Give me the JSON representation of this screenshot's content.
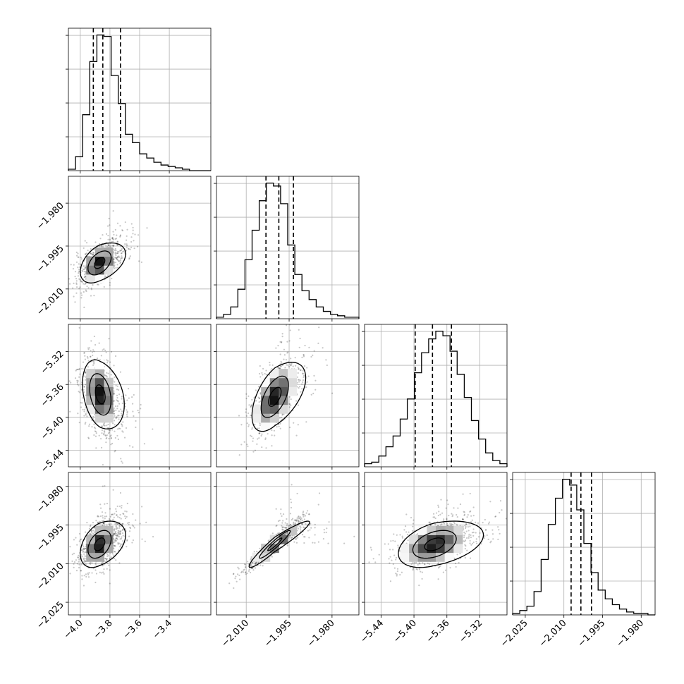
{
  "chart_data": {
    "type": "corner",
    "title": "",
    "grid": true,
    "parameters": [
      {
        "ticks": [
          -4.0,
          -3.8,
          -3.6,
          -3.4
        ],
        "tick_labels": [
          "−4.0",
          "−3.8",
          "−3.6",
          "−3.4"
        ],
        "range": [
          -4.08,
          -3.12
        ]
      },
      {
        "ticks": [
          -2.01,
          -1.995,
          -1.98
        ],
        "tick_labels": [
          "−2.010",
          "−1.995",
          "−1.980"
        ],
        "range": [
          -2.0204,
          -1.9706
        ]
      },
      {
        "ticks": [
          -5.44,
          -5.4,
          -5.36,
          -5.32
        ],
        "tick_labels": [
          "−5.44",
          "−5.40",
          "−5.36",
          "−5.32"
        ],
        "range": [
          -5.46,
          -5.287
        ]
      },
      {
        "ticks": [
          -2.025,
          -2.01,
          -1.995,
          -1.98
        ],
        "tick_labels": [
          "−2.025",
          "−2.010",
          "−1.995",
          "−1.980"
        ],
        "range": [
          -2.0299,
          -1.9746
        ]
      }
    ],
    "diagonal": [
      {
        "quantiles": [
          -3.912,
          -3.848,
          -3.729
        ],
        "counts": [
          1,
          10,
          40,
          78,
          97,
          96,
          68,
          48,
          26,
          20,
          12,
          9,
          6,
          4,
          3,
          2,
          1,
          0,
          0,
          0
        ]
      },
      {
        "quantiles": [
          -2.0031,
          -1.9986,
          -1.9935
        ],
        "counts": [
          1,
          3,
          8,
          20,
          40,
          60,
          80,
          92,
          90,
          78,
          50,
          30,
          19,
          13,
          8,
          5,
          3,
          2,
          1,
          1
        ]
      },
      {
        "quantiles": [
          -5.3985,
          -5.3775,
          -5.3545
        ],
        "counts": [
          2,
          3,
          7,
          13,
          20,
          31,
          44,
          61,
          74,
          83,
          88,
          85,
          75,
          60,
          45,
          30,
          18,
          9,
          4,
          2
        ]
      },
      {
        "quantiles": [
          -2.0072,
          -2.0034,
          -1.9993
        ],
        "counts": [
          1,
          3,
          6,
          16,
          38,
          62,
          80,
          93,
          89,
          72,
          49,
          29,
          17,
          11,
          7,
          4,
          2,
          1,
          1,
          0
        ]
      }
    ],
    "pairs": [
      {
        "row": 1,
        "col": 0,
        "mean": [
          -3.87,
          -2.0009
        ],
        "sd": [
          0.065,
          0.0035
        ],
        "corr": 0.45
      },
      {
        "row": 2,
        "col": 0,
        "mean": [
          -3.865,
          -5.372
        ],
        "sd": [
          0.06,
          0.021
        ],
        "corr": -0.3
      },
      {
        "row": 2,
        "col": 1,
        "mean": [
          -2.0,
          -5.375
        ],
        "sd": [
          0.004,
          0.021
        ],
        "corr": 0.55
      },
      {
        "row": 3,
        "col": 0,
        "mean": [
          -3.87,
          -2.0025
        ],
        "sd": [
          0.065,
          0.0045
        ],
        "corr": 0.4
      },
      {
        "row": 3,
        "col": 1,
        "mean": [
          -2.0,
          -2.0025
        ],
        "sd": [
          0.0045,
          0.0045
        ],
        "corr": 0.95
      },
      {
        "row": 3,
        "col": 2,
        "mean": [
          -5.375,
          -2.0025
        ],
        "sd": [
          0.022,
          0.0045
        ],
        "corr": 0.4
      }
    ]
  }
}
